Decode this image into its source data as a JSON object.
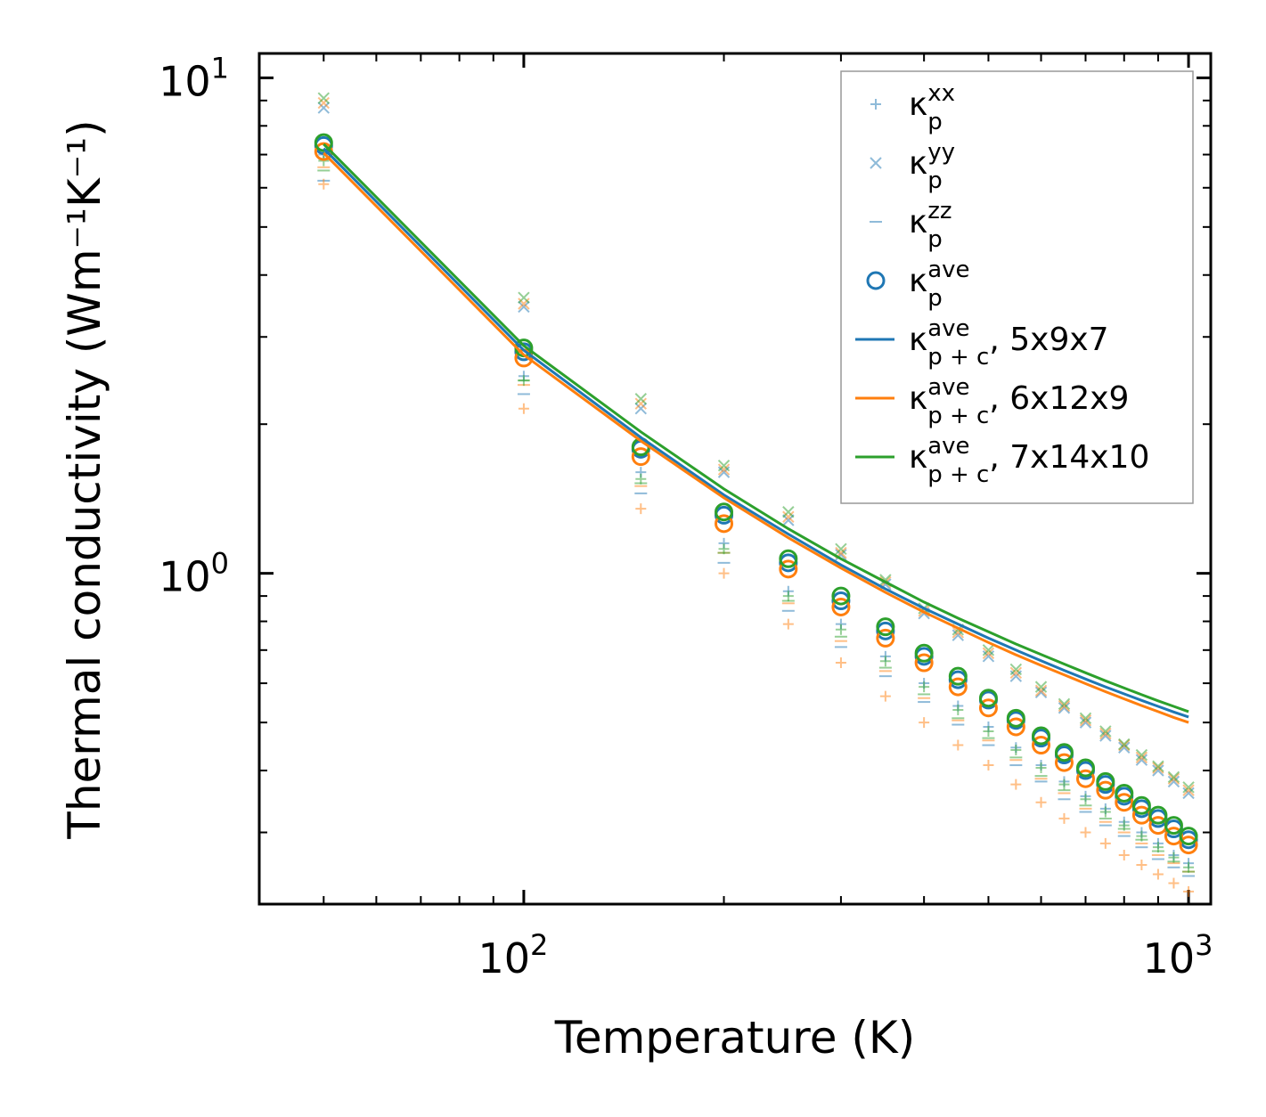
{
  "chart_data": {
    "type": "scatter",
    "title": "",
    "xlabel": "Temperature (K)",
    "ylabel": "Thermal conductivity (Wm⁻¹K⁻¹)",
    "xscale": "log",
    "yscale": "log",
    "xlim": [
      40,
      1080
    ],
    "ylim": [
      0.215,
      11.2
    ],
    "x_ticks": [
      {
        "base": "10",
        "exp": "2",
        "value": 100
      },
      {
        "base": "10",
        "exp": "3",
        "value": 1000
      }
    ],
    "y_ticks": [
      {
        "base": "10",
        "exp": "0",
        "value": 1
      },
      {
        "base": "10",
        "exp": "1",
        "value": 10
      }
    ],
    "grid": false,
    "legend_position": "top-right",
    "temperatures": [
      50,
      100,
      150,
      200,
      250,
      300,
      350,
      400,
      450,
      500,
      550,
      600,
      650,
      700,
      750,
      800,
      850,
      900,
      950,
      1000
    ],
    "colors": {
      "5x9x7": "#1f77b4",
      "6x12x9": "#ff7f0e",
      "7x14x10": "#2ca02c"
    },
    "legend": [
      {
        "marker": "plus",
        "main": "κ",
        "sub": "p",
        "sup": "xx",
        "suffix": ""
      },
      {
        "marker": "x",
        "main": "κ",
        "sub": "p",
        "sup": "yy",
        "suffix": ""
      },
      {
        "marker": "dash",
        "main": "κ",
        "sub": "p",
        "sup": "zz",
        "suffix": ""
      },
      {
        "marker": "circle",
        "main": "κ",
        "sub": "p",
        "sup": "ave",
        "suffix": ""
      },
      {
        "marker": "line",
        "color_key": "5x9x7",
        "main": "κ",
        "sub": "p + c",
        "sup": "ave",
        "suffix": ", 5x9x7"
      },
      {
        "marker": "line",
        "color_key": "6x12x9",
        "main": "κ",
        "sub": "p + c",
        "sup": "ave",
        "suffix": ", 6x12x9"
      },
      {
        "marker": "line",
        "color_key": "7x14x10",
        "main": "κ",
        "sub": "p + c",
        "sup": "ave",
        "suffix": ", 7x14x10"
      }
    ],
    "series": [
      {
        "name": "5x9x7",
        "kappa_xx": [
          7.0,
          2.5,
          1.6,
          1.15,
          0.92,
          0.79,
          0.68,
          0.6,
          0.54,
          0.49,
          0.445,
          0.41,
          0.38,
          0.355,
          0.335,
          0.315,
          0.3,
          0.285,
          0.27,
          0.26
        ],
        "kappa_yy": [
          8.7,
          3.45,
          2.15,
          1.6,
          1.28,
          1.09,
          0.95,
          0.83,
          0.75,
          0.68,
          0.62,
          0.575,
          0.535,
          0.5,
          0.47,
          0.445,
          0.42,
          0.4,
          0.38,
          0.36
        ],
        "kappa_zz": [
          6.2,
          2.3,
          1.45,
          1.05,
          0.84,
          0.71,
          0.62,
          0.55,
          0.495,
          0.45,
          0.41,
          0.38,
          0.35,
          0.33,
          0.31,
          0.295,
          0.28,
          0.265,
          0.255,
          0.245
        ],
        "kappa_ave": [
          7.3,
          2.8,
          1.78,
          1.31,
          1.05,
          0.88,
          0.765,
          0.68,
          0.61,
          0.555,
          0.505,
          0.465,
          0.43,
          0.4,
          0.375,
          0.355,
          0.335,
          0.32,
          0.305,
          0.29
        ],
        "kappa_pc_ave": [
          7.2,
          2.82,
          1.88,
          1.44,
          1.2,
          1.04,
          0.93,
          0.85,
          0.79,
          0.74,
          0.7,
          0.666,
          0.637,
          0.612,
          0.59,
          0.571,
          0.554,
          0.539,
          0.525,
          0.513
        ]
      },
      {
        "name": "6x12x9",
        "kappa_xx": [
          6.1,
          2.15,
          1.35,
          1.0,
          0.79,
          0.66,
          0.565,
          0.5,
          0.45,
          0.41,
          0.375,
          0.345,
          0.32,
          0.3,
          0.285,
          0.27,
          0.258,
          0.247,
          0.237,
          0.228
        ],
        "kappa_yy": [
          8.9,
          3.5,
          2.2,
          1.62,
          1.3,
          1.1,
          0.96,
          0.84,
          0.76,
          0.69,
          0.63,
          0.58,
          0.54,
          0.505,
          0.475,
          0.45,
          0.425,
          0.405,
          0.385,
          0.365
        ],
        "kappa_zz": [
          6.6,
          2.4,
          1.5,
          1.1,
          0.87,
          0.73,
          0.635,
          0.56,
          0.505,
          0.46,
          0.42,
          0.385,
          0.36,
          0.335,
          0.315,
          0.3,
          0.285,
          0.27,
          0.26,
          0.25
        ],
        "kappa_ave": [
          7.1,
          2.72,
          1.72,
          1.26,
          1.02,
          0.855,
          0.74,
          0.66,
          0.59,
          0.535,
          0.49,
          0.45,
          0.415,
          0.385,
          0.365,
          0.345,
          0.325,
          0.31,
          0.295,
          0.283
        ],
        "kappa_pc_ave": [
          7.05,
          2.76,
          1.85,
          1.42,
          1.18,
          1.025,
          0.915,
          0.835,
          0.775,
          0.725,
          0.685,
          0.652,
          0.624,
          0.599,
          0.577,
          0.558,
          0.541,
          0.526,
          0.512,
          0.5
        ]
      },
      {
        "name": "7x14x10",
        "kappa_xx": [
          6.8,
          2.45,
          1.55,
          1.12,
          0.9,
          0.77,
          0.665,
          0.59,
          0.53,
          0.48,
          0.44,
          0.405,
          0.375,
          0.35,
          0.33,
          0.31,
          0.295,
          0.28,
          0.267,
          0.255
        ],
        "kappa_yy": [
          9.1,
          3.6,
          2.25,
          1.65,
          1.33,
          1.12,
          0.97,
          0.85,
          0.77,
          0.7,
          0.64,
          0.59,
          0.545,
          0.51,
          0.48,
          0.452,
          0.43,
          0.408,
          0.388,
          0.37
        ],
        "kappa_zz": [
          6.5,
          2.45,
          1.52,
          1.1,
          0.88,
          0.745,
          0.645,
          0.57,
          0.51,
          0.465,
          0.425,
          0.39,
          0.365,
          0.34,
          0.32,
          0.305,
          0.29,
          0.275,
          0.262,
          0.25
        ],
        "kappa_ave": [
          7.4,
          2.85,
          1.8,
          1.33,
          1.07,
          0.9,
          0.78,
          0.69,
          0.62,
          0.56,
          0.51,
          0.47,
          0.435,
          0.405,
          0.38,
          0.36,
          0.34,
          0.325,
          0.31,
          0.295
        ],
        "kappa_pc_ave": [
          7.35,
          2.88,
          1.93,
          1.48,
          1.23,
          1.07,
          0.96,
          0.875,
          0.812,
          0.762,
          0.72,
          0.686,
          0.656,
          0.63,
          0.607,
          0.587,
          0.569,
          0.553,
          0.539,
          0.526
        ]
      }
    ]
  }
}
